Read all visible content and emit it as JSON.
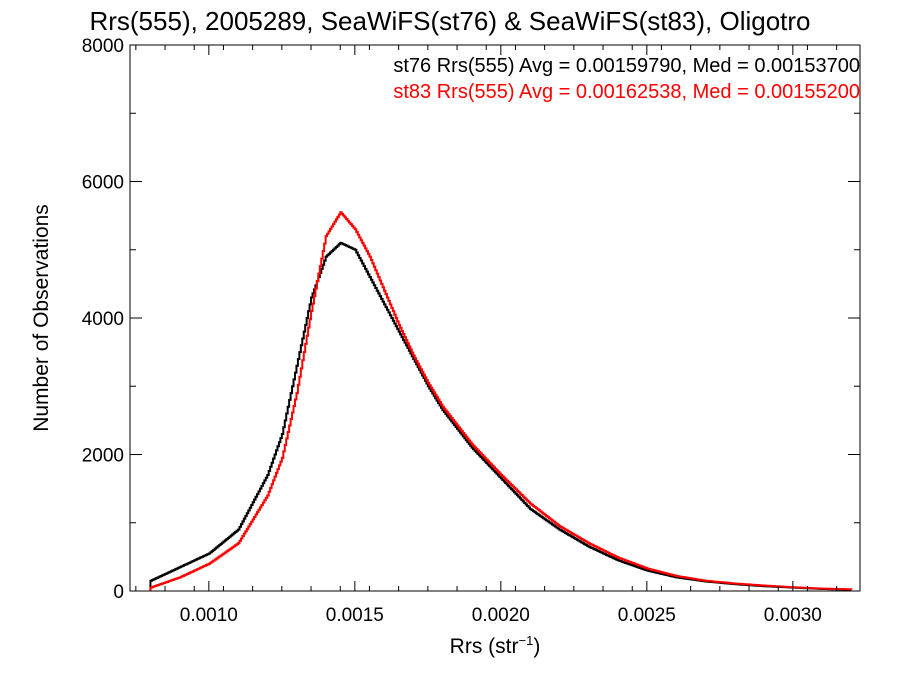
{
  "chart_data": {
    "type": "line",
    "title": "Rrs(555), 2005289, SeaWiFS(st76) & SeaWiFS(st83), Oligotro",
    "xlabel_main": "Rrs (str",
    "xlabel_sup": "−1",
    "xlabel_close": ")",
    "ylabel": "Number of Observations",
    "xlim": [
      0.00073,
      0.00323
    ],
    "ylim": [
      0,
      8000
    ],
    "x_ticks": [
      {
        "value": 0.001,
        "label": "0.0010"
      },
      {
        "value": 0.0015,
        "label": "0.0015"
      },
      {
        "value": 0.002,
        "label": "0.0020"
      },
      {
        "value": 0.0025,
        "label": "0.0025"
      },
      {
        "value": 0.003,
        "label": "0.0030"
      }
    ],
    "y_ticks": [
      {
        "value": 0,
        "label": "0"
      },
      {
        "value": 2000,
        "label": "2000"
      },
      {
        "value": 4000,
        "label": "4000"
      },
      {
        "value": 6000,
        "label": "6000"
      },
      {
        "value": 8000,
        "label": "8000"
      }
    ],
    "grid": false,
    "legend_placement": "top-right",
    "x_step": 5e-06,
    "series": [
      {
        "name": "st76",
        "stats_text": "st76 Rrs(555) Avg = 0.00159790, Med = 0.00153700",
        "color": "#000000",
        "x": [
          0.0008,
          0.0009,
          0.001,
          0.0011,
          0.0012,
          0.00125,
          0.0013,
          0.00135,
          0.0014,
          0.00145,
          0.0015,
          0.00155,
          0.0016,
          0.00165,
          0.0017,
          0.00175,
          0.0018,
          0.0019,
          0.002,
          0.0021,
          0.0022,
          0.0023,
          0.0024,
          0.0025,
          0.0026,
          0.0027,
          0.0028,
          0.0029,
          0.003,
          0.0031,
          0.0032
        ],
        "values": [
          150,
          350,
          550,
          900,
          1700,
          2300,
          3300,
          4300,
          4900,
          5100,
          5000,
          4600,
          4200,
          3800,
          3400,
          3000,
          2650,
          2100,
          1650,
          1200,
          900,
          650,
          450,
          300,
          200,
          140,
          100,
          70,
          50,
          30,
          20
        ]
      },
      {
        "name": "st83",
        "stats_text": "st83 Rrs(555) Avg = 0.00162538, Med = 0.00155200",
        "color": "#ff0000",
        "x": [
          0.0008,
          0.0009,
          0.001,
          0.0011,
          0.0012,
          0.00125,
          0.0013,
          0.00135,
          0.0014,
          0.00145,
          0.0015,
          0.00155,
          0.0016,
          0.00165,
          0.0017,
          0.00175,
          0.0018,
          0.0019,
          0.002,
          0.0021,
          0.0022,
          0.0023,
          0.0024,
          0.0025,
          0.0026,
          0.0027,
          0.0028,
          0.0029,
          0.003,
          0.0031,
          0.0032
        ],
        "values": [
          50,
          200,
          400,
          700,
          1400,
          1950,
          2900,
          4100,
          5200,
          5550,
          5300,
          4900,
          4400,
          3900,
          3450,
          3050,
          2700,
          2150,
          1700,
          1280,
          950,
          700,
          490,
          330,
          220,
          150,
          110,
          80,
          55,
          35,
          25
        ]
      }
    ]
  }
}
